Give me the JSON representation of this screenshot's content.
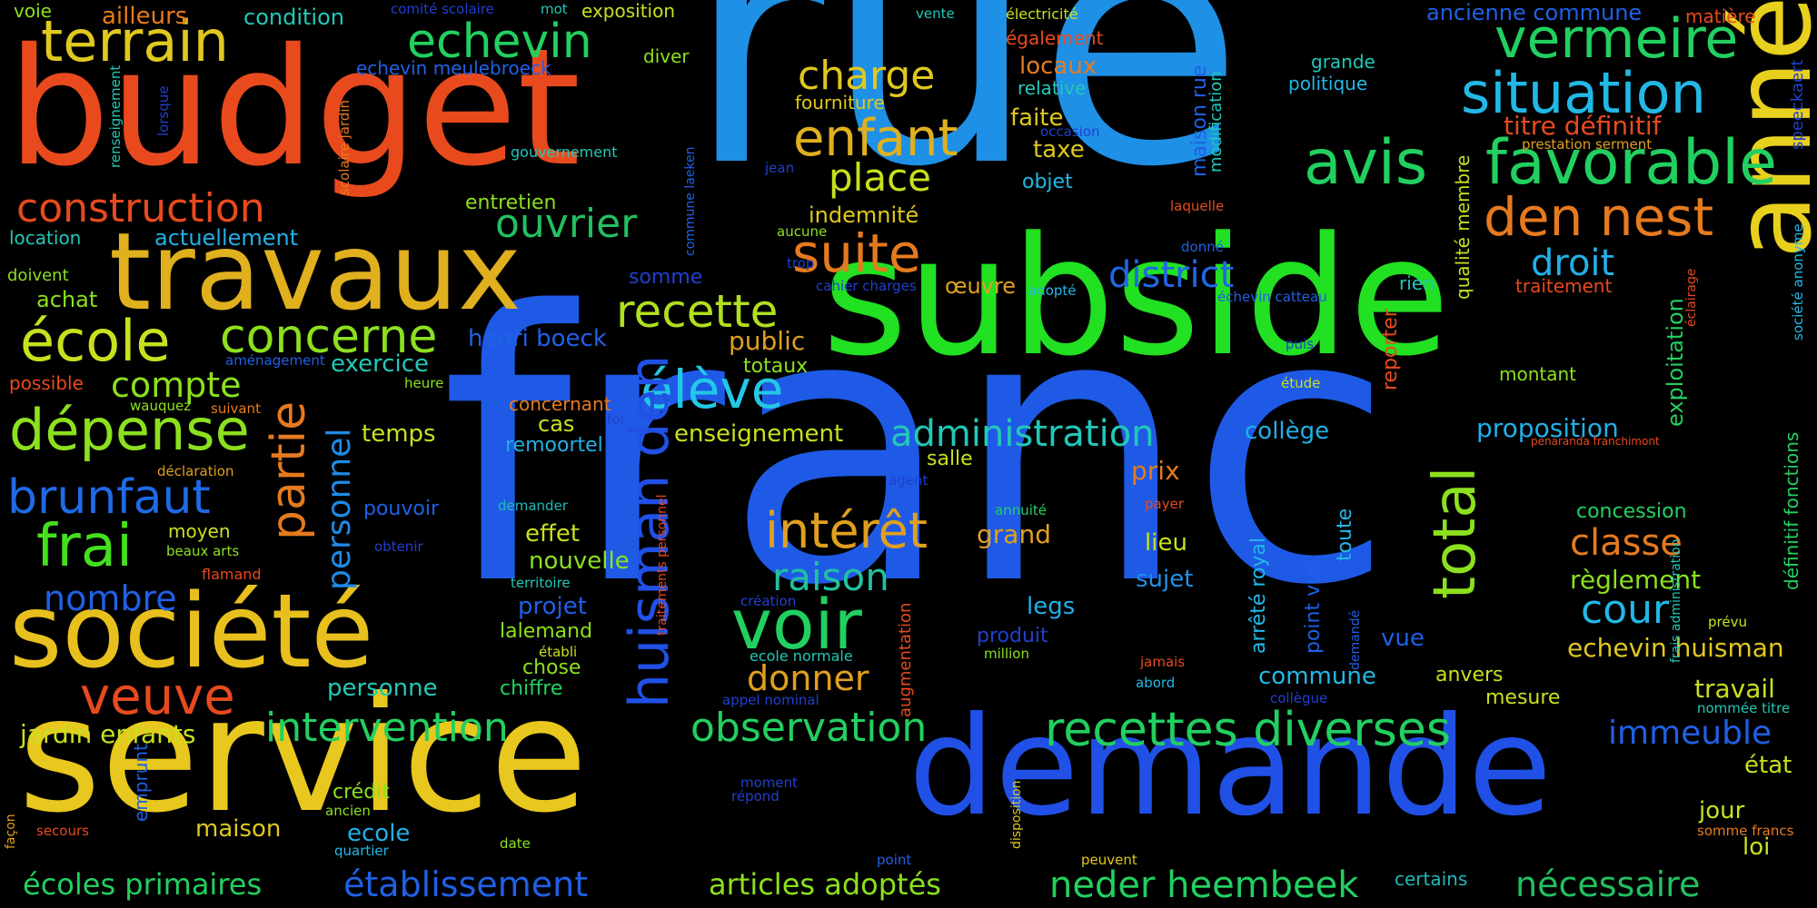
{
  "words": [
    {
      "text": "rue",
      "color": "#1e90e6"
    },
    {
      "text": "franc",
      "color": "#1f5ae6"
    },
    {
      "text": "subside",
      "color": "#22e022"
    },
    {
      "text": "budget",
      "color": "#e84a1e"
    },
    {
      "text": "service",
      "color": "#e8c81e"
    },
    {
      "text": "demande",
      "color": "#2050e6"
    },
    {
      "text": "travaux",
      "color": "#e0b01e"
    },
    {
      "text": "société",
      "color": "#e8c01e"
    },
    {
      "text": "année",
      "color": "#e8d01e"
    },
    {
      "text": "favorable",
      "color": "#22d060"
    },
    {
      "text": "avis",
      "color": "#22d060"
    },
    {
      "text": "situation",
      "color": "#22b8e6"
    },
    {
      "text": "vermeire",
      "color": "#22d060"
    },
    {
      "text": "den nest",
      "color": "#e67a1e"
    },
    {
      "text": "terrain",
      "color": "#e0c81e"
    },
    {
      "text": "école",
      "color": "#c8e01e"
    },
    {
      "text": "dépense",
      "color": "#8ce01e"
    },
    {
      "text": "construction",
      "color": "#e84a1e"
    },
    {
      "text": "brunfaut",
      "color": "#1f6ae6"
    },
    {
      "text": "frai",
      "color": "#44e01e"
    },
    {
      "text": "veuve",
      "color": "#e84a1e"
    },
    {
      "text": "concerne",
      "color": "#8ce01e"
    },
    {
      "text": "compte",
      "color": "#8ce01e"
    },
    {
      "text": "partie",
      "color": "#e67a1e"
    },
    {
      "text": "personnel",
      "color": "#1f8ae6"
    },
    {
      "text": "nombre",
      "color": "#2060e6"
    },
    {
      "text": "echevin",
      "color": "#22d060"
    },
    {
      "text": "ouvrier",
      "color": "#22c060"
    },
    {
      "text": "enfant",
      "color": "#e0b01e"
    },
    {
      "text": "suite",
      "color": "#e67a1e"
    },
    {
      "text": "charge",
      "color": "#e0c81e"
    },
    {
      "text": "place",
      "color": "#c8e01e"
    },
    {
      "text": "recette",
      "color": "#b0e01e"
    },
    {
      "text": "élève",
      "color": "#22c8e6"
    },
    {
      "text": "district",
      "color": "#2066e6"
    },
    {
      "text": "droit",
      "color": "#22b0e6"
    },
    {
      "text": "huisman den",
      "color": "#2050e6"
    },
    {
      "text": "voir",
      "color": "#22d060"
    },
    {
      "text": "intérêt",
      "color": "#e0a01e"
    },
    {
      "text": "raison",
      "color": "#22c0a0"
    },
    {
      "text": "total",
      "color": "#8ce01e"
    },
    {
      "text": "administration",
      "color": "#22c8b8"
    },
    {
      "text": "recettes diverses",
      "color": "#22d060"
    },
    {
      "text": "observation",
      "color": "#22d060"
    },
    {
      "text": "intervention",
      "color": "#22d060"
    },
    {
      "text": "classe",
      "color": "#e67a1e"
    },
    {
      "text": "cour",
      "color": "#22b8e6"
    },
    {
      "text": "immeuble",
      "color": "#2060e6"
    },
    {
      "text": "établissement",
      "color": "#2060e6"
    },
    {
      "text": "écoles primaires",
      "color": "#22d060"
    },
    {
      "text": "neder heembeek",
      "color": "#22d060"
    },
    {
      "text": "nécessaire",
      "color": "#22c060"
    },
    {
      "text": "articles adoptés",
      "color": "#8ce01e"
    },
    {
      "text": "jardin enfants",
      "color": "#c8e01e"
    },
    {
      "text": "donner",
      "color": "#e0a01e"
    },
    {
      "text": "echevin huisman",
      "color": "#e0c81e"
    },
    {
      "text": "règlement",
      "color": "#8ce01e"
    },
    {
      "text": "travail",
      "color": "#c8e01e"
    },
    {
      "text": "exploitation",
      "color": "#22d060"
    },
    {
      "text": "proposition",
      "color": "#22b0e6"
    },
    {
      "text": "commune",
      "color": "#22b8e6"
    },
    {
      "text": "collège",
      "color": "#22b0e6"
    },
    {
      "text": "enseignement",
      "color": "#c8e01e"
    },
    {
      "text": "temps",
      "color": "#c8e01e"
    },
    {
      "text": "effet",
      "color": "#c8e01e"
    },
    {
      "text": "nouvelle",
      "color": "#8ce01e"
    },
    {
      "text": "projet",
      "color": "#2060e6"
    },
    {
      "text": "lalemand",
      "color": "#8ce01e"
    },
    {
      "text": "chose",
      "color": "#8ce01e"
    },
    {
      "text": "chiffre",
      "color": "#22d060"
    },
    {
      "text": "personne",
      "color": "#22c8b8"
    },
    {
      "text": "exercice",
      "color": "#22c8b8"
    },
    {
      "text": "henri boeck",
      "color": "#2060e6"
    },
    {
      "text": "maison",
      "color": "#e0c81e"
    },
    {
      "text": "ecole",
      "color": "#22b0e6"
    },
    {
      "text": "crédit",
      "color": "#8ce01e"
    },
    {
      "text": "moyen",
      "color": "#c8e01e"
    },
    {
      "text": "pouvoir",
      "color": "#2060e6"
    },
    {
      "text": "prix",
      "color": "#e67a1e"
    },
    {
      "text": "lieu",
      "color": "#c8e01e"
    },
    {
      "text": "sujet",
      "color": "#2090e6"
    },
    {
      "text": "legs",
      "color": "#22b0e6"
    },
    {
      "text": "produit",
      "color": "#2040d0"
    },
    {
      "text": "grand",
      "color": "#e0a01e"
    },
    {
      "text": "totaux",
      "color": "#8ce01e"
    },
    {
      "text": "public",
      "color": "#e0a01e"
    },
    {
      "text": "cas",
      "color": "#c8e01e"
    },
    {
      "text": "concernant",
      "color": "#e67a1e"
    },
    {
      "text": "remoortel",
      "color": "#22b0e6"
    },
    {
      "text": "somme",
      "color": "#2040d0"
    },
    {
      "text": "entretien",
      "color": "#8ce01e"
    },
    {
      "text": "indemnité",
      "color": "#e0c81e"
    },
    {
      "text": "actuellement",
      "color": "#22b0e6"
    },
    {
      "text": "location",
      "color": "#22c8b8"
    },
    {
      "text": "doivent",
      "color": "#8ce01e"
    },
    {
      "text": "achat",
      "color": "#8ce01e"
    },
    {
      "text": "possible",
      "color": "#e84a1e"
    },
    {
      "text": "aménagement",
      "color": "#2060e6"
    },
    {
      "text": "heure",
      "color": "#8ce01e"
    },
    {
      "text": "suivant",
      "color": "#e67a1e"
    },
    {
      "text": "wauquez",
      "color": "#8ce01e"
    },
    {
      "text": "déclaration",
      "color": "#e0a01e"
    },
    {
      "text": "beaux arts",
      "color": "#8ce01e"
    },
    {
      "text": "flamand",
      "color": "#e84a1e"
    },
    {
      "text": "obtenir",
      "color": "#2040d0"
    },
    {
      "text": "demander",
      "color": "#22b8b8"
    },
    {
      "text": "territoire",
      "color": "#22c8b8"
    },
    {
      "text": "établi",
      "color": "#c8e01e"
    },
    {
      "text": "ecole normale",
      "color": "#22c8b8"
    },
    {
      "text": "appel nominal",
      "color": "#2040d0"
    },
    {
      "text": "million",
      "color": "#8ce01e"
    },
    {
      "text": "création",
      "color": "#2040d0"
    },
    {
      "text": "annuité",
      "color": "#22d060"
    },
    {
      "text": "payer",
      "color": "#e84a1e"
    },
    {
      "text": "jamais",
      "color": "#e84a1e"
    },
    {
      "text": "abord",
      "color": "#22b8e6"
    },
    {
      "text": "moment",
      "color": "#2040d0"
    },
    {
      "text": "répond",
      "color": "#2040d0"
    },
    {
      "text": "disposition",
      "color": "#e0c81e"
    },
    {
      "text": "peuvent",
      "color": "#e0c81e"
    },
    {
      "text": "point",
      "color": "#2060e6"
    },
    {
      "text": "date",
      "color": "#8ce01e"
    },
    {
      "text": "quartier",
      "color": "#22b8e6"
    },
    {
      "text": "ancien",
      "color": "#8ce01e"
    },
    {
      "text": "secours",
      "color": "#e84a1e"
    },
    {
      "text": "façon",
      "color": "#e0a01e"
    },
    {
      "text": "emprunt",
      "color": "#2060e6"
    },
    {
      "text": "agent",
      "color": "#2040d0"
    },
    {
      "text": "foi",
      "color": "#2040d0"
    },
    {
      "text": "salle",
      "color": "#c8e01e"
    },
    {
      "text": "étude",
      "color": "#c8e01e"
    },
    {
      "text": "puis",
      "color": "#2040d0"
    },
    {
      "text": "adopté",
      "color": "#22b8e6"
    },
    {
      "text": "œuvre",
      "color": "#e0a01e"
    },
    {
      "text": "cahier charges",
      "color": "#2040d0"
    },
    {
      "text": "trop",
      "color": "#2040d0"
    },
    {
      "text": "aucune",
      "color": "#8ce01e"
    },
    {
      "text": "jean",
      "color": "#2040d0"
    },
    {
      "text": "gouvernement",
      "color": "#22c8b8"
    },
    {
      "text": "fourniture",
      "color": "#e0c81e"
    },
    {
      "text": "objet",
      "color": "#22b8e6"
    },
    {
      "text": "taxe",
      "color": "#e0c81e"
    },
    {
      "text": "faite",
      "color": "#e0c81e"
    },
    {
      "text": "occasion",
      "color": "#2040d0"
    },
    {
      "text": "relative",
      "color": "#22c8b8"
    },
    {
      "text": "locaux",
      "color": "#e67a1e"
    },
    {
      "text": "également",
      "color": "#e84a1e"
    },
    {
      "text": "électricité",
      "color": "#c8e01e"
    },
    {
      "text": "vente",
      "color": "#22c8b8"
    },
    {
      "text": "ailleurs",
      "color": "#e67a1e"
    },
    {
      "text": "condition",
      "color": "#22c8b8"
    },
    {
      "text": "voie",
      "color": "#8ce01e"
    },
    {
      "text": "comité scolaire",
      "color": "#2040d0"
    },
    {
      "text": "mot",
      "color": "#22c8b8"
    },
    {
      "text": "exposition",
      "color": "#c8e01e"
    },
    {
      "text": "diver",
      "color": "#8ce01e"
    },
    {
      "text": "echevin meulebroeck",
      "color": "#2060e6"
    },
    {
      "text": "laquelle",
      "color": "#e84a1e"
    },
    {
      "text": "donné",
      "color": "#2060e6"
    },
    {
      "text": "rien",
      "color": "#22c8b8"
    },
    {
      "text": "ancienne commune",
      "color": "#2060e6"
    },
    {
      "text": "grande",
      "color": "#22c8b8"
    },
    {
      "text": "politique",
      "color": "#22b8e6"
    },
    {
      "text": "titre définitif",
      "color": "#e84a1e"
    },
    {
      "text": "prestation serment",
      "color": "#e0a01e"
    },
    {
      "text": "matière",
      "color": "#e84a1e"
    },
    {
      "text": "traitement",
      "color": "#e84a1e"
    },
    {
      "text": "montant",
      "color": "#8ce01e"
    },
    {
      "text": "état",
      "color": "#c8e01e"
    },
    {
      "text": "jour",
      "color": "#c8e01e"
    },
    {
      "text": "loi",
      "color": "#c8e01e"
    },
    {
      "text": "concession",
      "color": "#22d060"
    },
    {
      "text": "somme francs",
      "color": "#e67a1e"
    },
    {
      "text": "certains",
      "color": "#22b8b8"
    },
    {
      "text": "anvers",
      "color": "#c8e01e"
    },
    {
      "text": "mesure",
      "color": "#c8e01e"
    },
    {
      "text": "vue",
      "color": "#2060e6"
    },
    {
      "text": "prévu",
      "color": "#c8e01e"
    },
    {
      "text": "nommée titre",
      "color": "#22c8b8"
    },
    {
      "text": "collègue",
      "color": "#2040d0"
    },
    {
      "text": "penaranda franchimont",
      "color": "#e84a1e"
    },
    {
      "text": "commune laeken",
      "color": "#2060e6"
    },
    {
      "text": "lorsque",
      "color": "#2040d0"
    },
    {
      "text": "renseignement",
      "color": "#22c8b8"
    },
    {
      "text": "scolaire jardin",
      "color": "#e67a1e"
    },
    {
      "text": "maison rue",
      "color": "#2060e6"
    },
    {
      "text": "modification",
      "color": "#22c8b8"
    },
    {
      "text": "reporter",
      "color": "#e84a1e"
    },
    {
      "text": "qualité membre",
      "color": "#c8e01e"
    },
    {
      "text": "arrêté royal",
      "color": "#22b8e6"
    },
    {
      "text": "point vue",
      "color": "#2060e6"
    },
    {
      "text": "toute",
      "color": "#22b8e6"
    },
    {
      "text": "demandé",
      "color": "#2060e6"
    },
    {
      "text": "frais administration",
      "color": "#22c8b8"
    },
    {
      "text": "augmentation",
      "color": "#e84a1e"
    },
    {
      "text": "traitements personnel",
      "color": "#e84a1e"
    },
    {
      "text": "échevin catteau",
      "color": "#2060e6"
    },
    {
      "text": "éclairage",
      "color": "#e84a1e"
    },
    {
      "text": "speeckaert",
      "color": "#2040d0"
    },
    {
      "text": "société anonyme",
      "color": "#22b8e6"
    },
    {
      "text": "définitif fonctions",
      "color": "#22d060"
    }
  ]
}
